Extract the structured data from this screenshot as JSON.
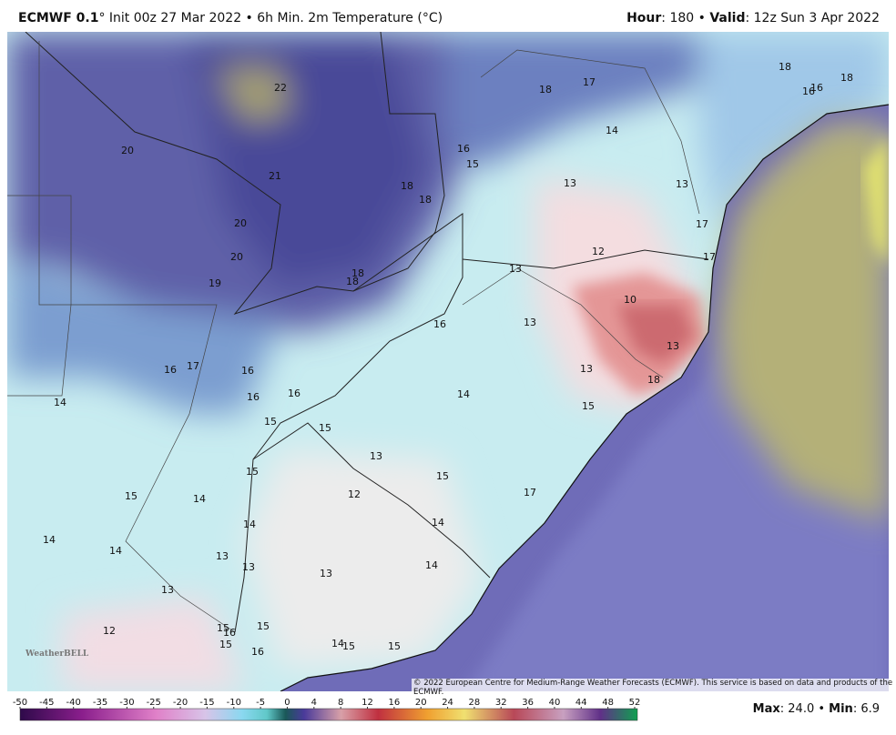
{
  "header": {
    "model": "ECMWF 0.1",
    "description": "° Init 00z 27 Mar 2022 • 6h Min. 2m Temperature (°C)",
    "hour_label": "Hour",
    "hour_value": ": 180 • ",
    "valid_label": "Valid",
    "valid_value": ": 12z Sun 3 Apr 2022"
  },
  "contour_labels": [
    22,
    20,
    21,
    20,
    20,
    19,
    18,
    17,
    18,
    16,
    16,
    18,
    14,
    16,
    15,
    18,
    18,
    13,
    13,
    17,
    12,
    13,
    17,
    18,
    18,
    10,
    13,
    16,
    13,
    13,
    18,
    16,
    17,
    16,
    16,
    16,
    14,
    14,
    15,
    15,
    15,
    13,
    15,
    15,
    12,
    17,
    15,
    14,
    14,
    14,
    14,
    14,
    13,
    13,
    14,
    13,
    13,
    12,
    15,
    16,
    15,
    15,
    16,
    14,
    15,
    15
  ],
  "copyright": "© 2022 European Centre for Medium-Range Weather Forecasts (ECMWF). This service is based on data and products of the ECMWF.",
  "logo": "WeatherBELL",
  "colorbar_ticks": [
    -50,
    -45,
    -40,
    -35,
    -30,
    -25,
    -20,
    -15,
    -10,
    -5,
    0,
    4,
    8,
    12,
    16,
    20,
    24,
    28,
    32,
    36,
    40,
    44,
    48,
    52
  ],
  "max_label": "Max",
  "max_value": ": 24.0 • ",
  "min_label": "Min",
  "min_value": ": 6.9"
}
